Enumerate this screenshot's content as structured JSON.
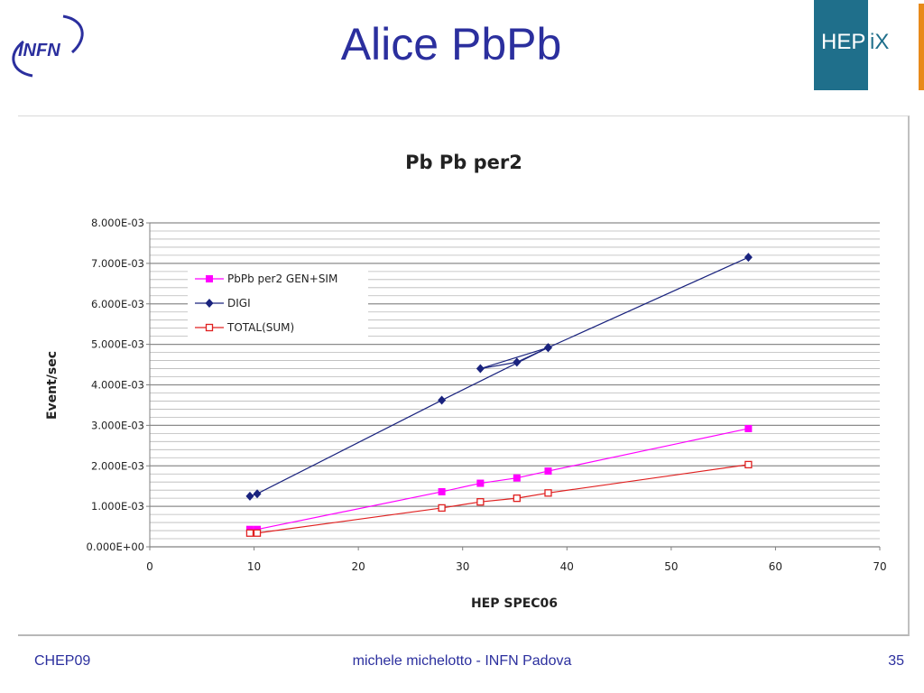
{
  "slide": {
    "title": "Alice PbPb",
    "logo_left_text": "INFN",
    "logo_right_text_a": "HEP",
    "logo_right_text_b": "iX"
  },
  "footer": {
    "left": "CHEP09",
    "center": "michele michelotto - INFN Padova",
    "right": "35"
  },
  "colors": {
    "title": "#2b2f9e",
    "series_gen_sim": "#ff00ff",
    "series_digi": "#1a237e",
    "series_total": "#e02020",
    "grid": "#a0a0a0"
  },
  "chart_data": {
    "type": "line",
    "title": "Pb Pb  per2",
    "xlabel": "HEP SPEC06",
    "ylabel": "Event/sec",
    "xlim": [
      0,
      70
    ],
    "ylim": [
      0,
      0.008
    ],
    "xticks": [
      "0",
      "10",
      "20",
      "30",
      "40",
      "50",
      "60",
      "70"
    ],
    "yticks": [
      "0.000E+00",
      "1.000E-03",
      "2.000E-03",
      "3.000E-03",
      "4.000E-03",
      "5.000E-03",
      "6.000E-03",
      "7.000E-03",
      "8.000E-03"
    ],
    "grid": true,
    "legend_position": "top-left",
    "series": [
      {
        "name": "PbPb per2 GEN+SIM",
        "marker": "square-filled",
        "color": "#ff00ff",
        "points": [
          [
            9.6,
            0.00043
          ],
          [
            10.3,
            0.00043
          ],
          [
            28,
            0.00136
          ],
          [
            31.7,
            0.00157
          ],
          [
            35.2,
            0.0017
          ],
          [
            38.2,
            0.00187
          ],
          [
            57.4,
            0.00292
          ]
        ]
      },
      {
        "name": "DIGI",
        "marker": "diamond-filled",
        "color": "#1a237e",
        "points": [
          [
            9.6,
            0.00125
          ],
          [
            10.3,
            0.00131
          ],
          [
            28,
            0.00362
          ],
          [
            38.2,
            0.00492
          ],
          [
            31.7,
            0.0044
          ],
          [
            35.2,
            0.00456
          ],
          [
            38.2,
            0.00492
          ],
          [
            57.4,
            0.00715
          ]
        ]
      },
      {
        "name": "TOTAL(SUM)",
        "marker": "square-open",
        "color": "#e02020",
        "points": [
          [
            9.6,
            0.00034
          ],
          [
            10.3,
            0.00034
          ],
          [
            28,
            0.00096
          ],
          [
            31.7,
            0.00111
          ],
          [
            35.2,
            0.0012
          ],
          [
            38.2,
            0.00133
          ],
          [
            57.4,
            0.00203
          ]
        ]
      }
    ]
  }
}
